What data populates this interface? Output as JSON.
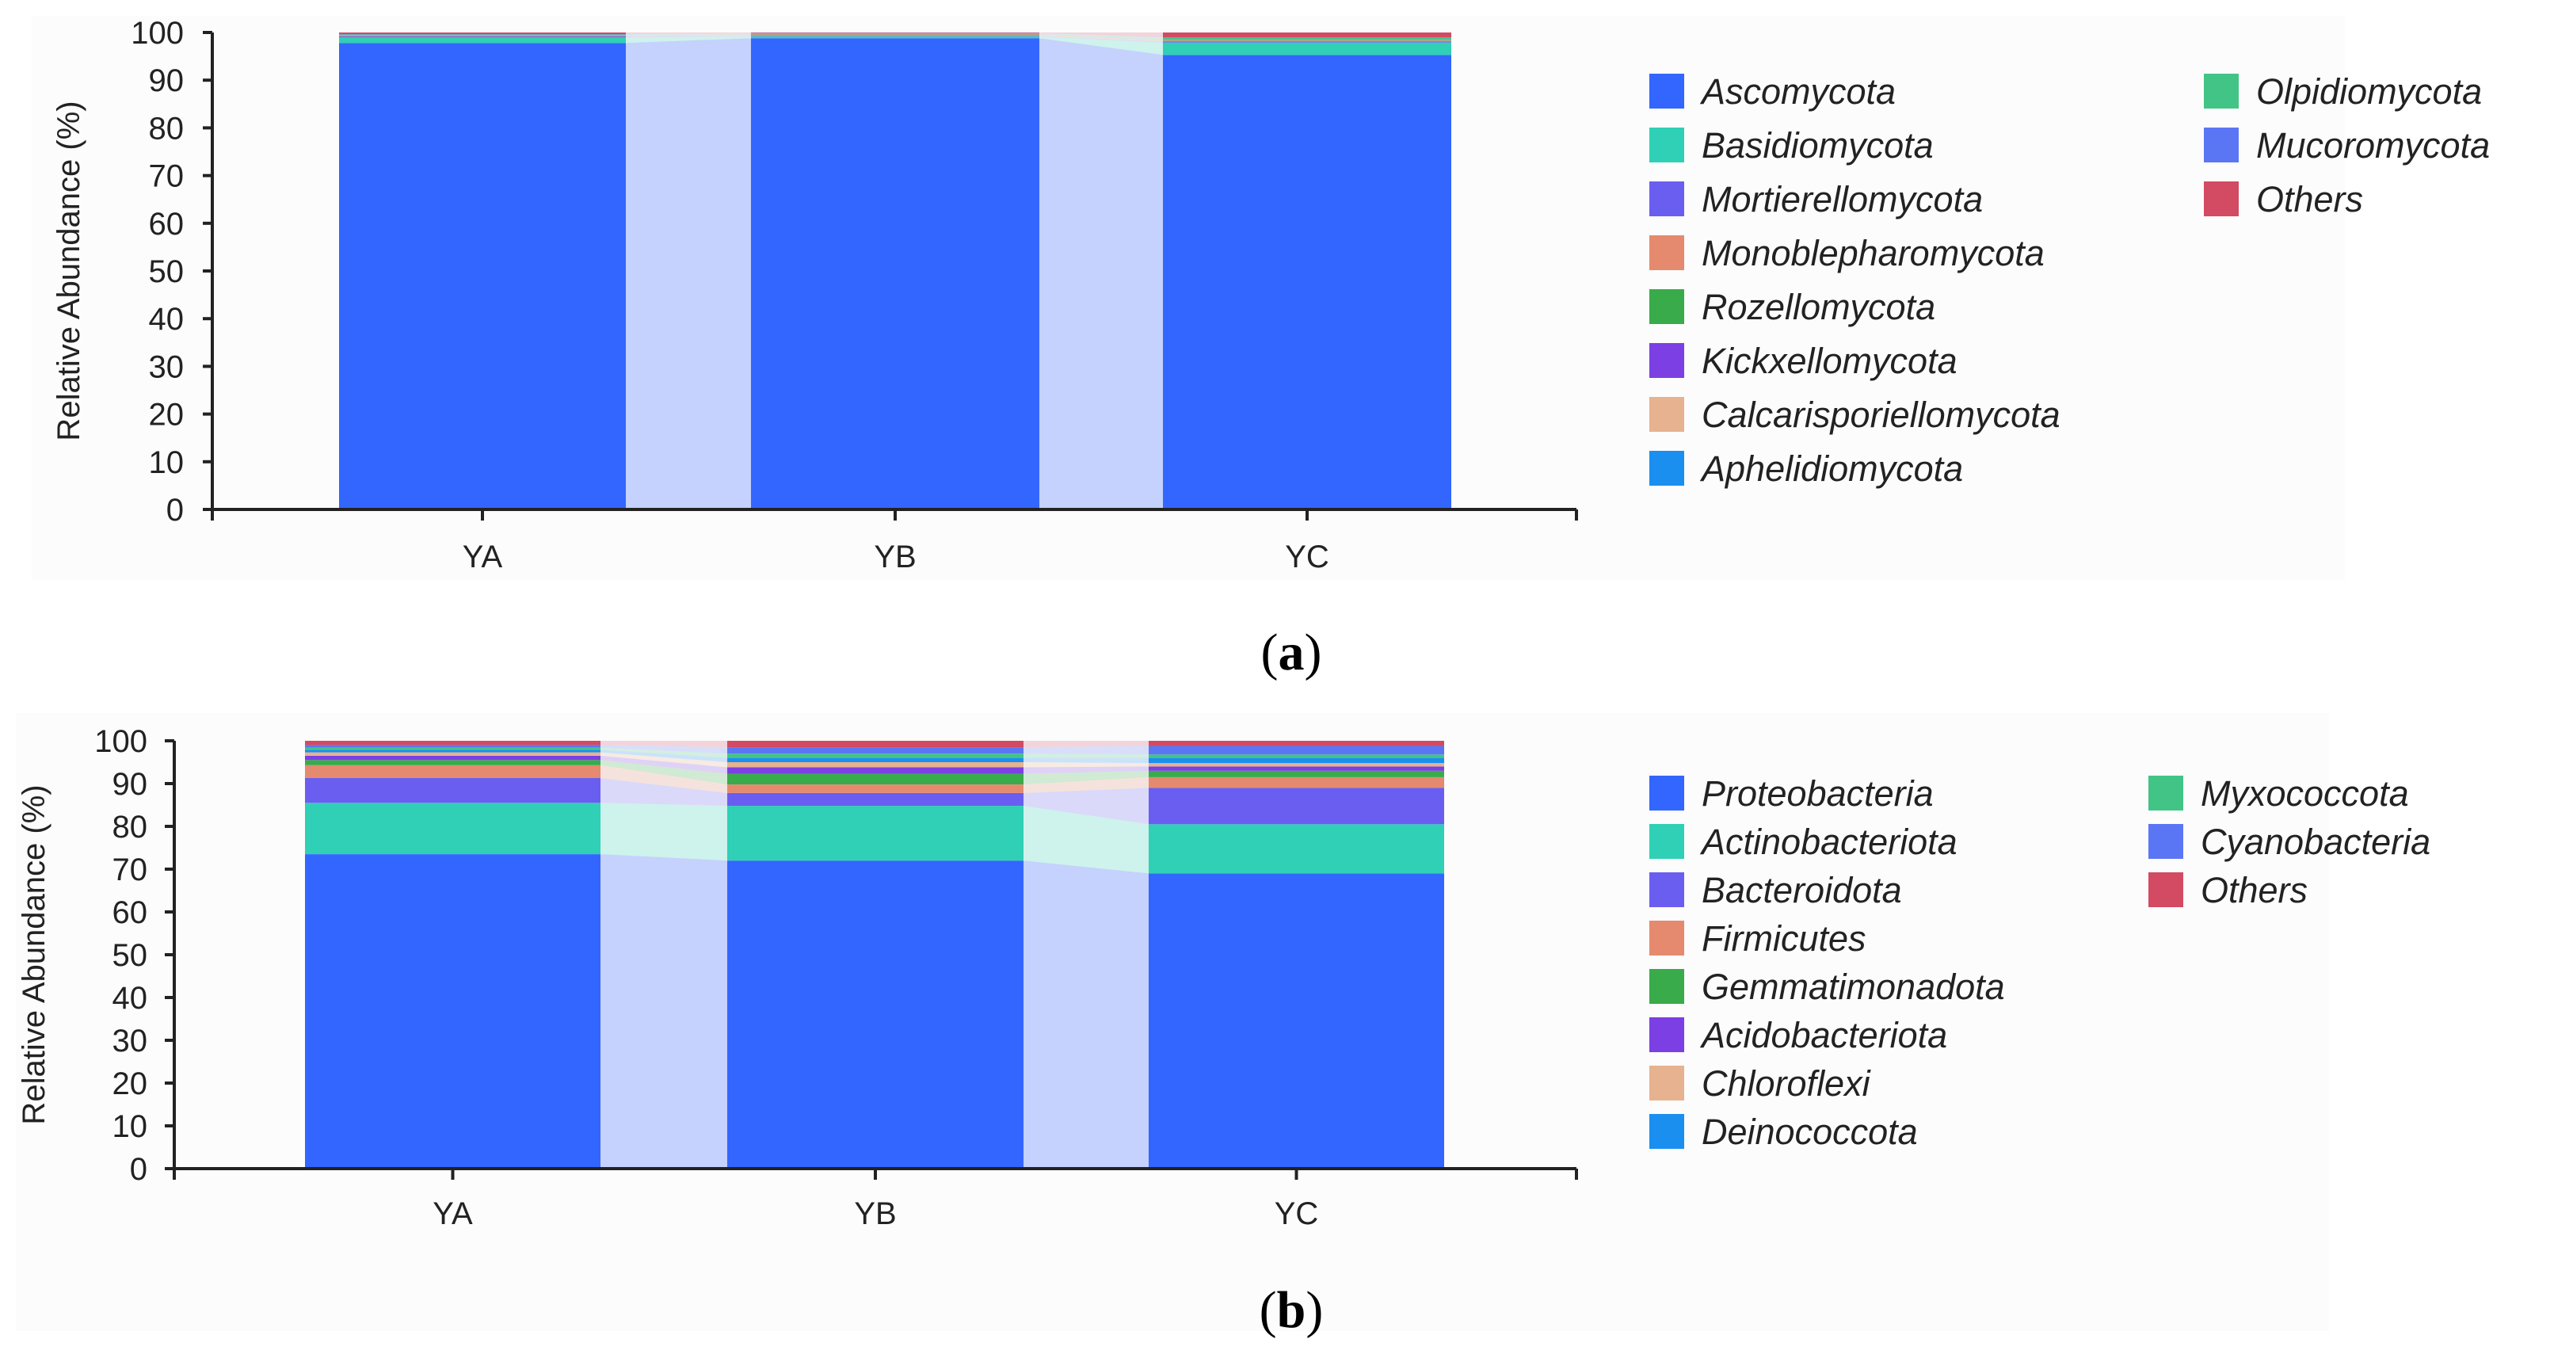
{
  "chart_data": [
    {
      "type": "bar",
      "stacked": true,
      "panel": "a",
      "ylabel": "Relative Abundance (%)",
      "xlabel": "",
      "ylim": [
        0,
        100
      ],
      "yticks": [
        0,
        10,
        20,
        30,
        40,
        50,
        60,
        70,
        80,
        90,
        100
      ],
      "categories": [
        "YA",
        "YB",
        "YC"
      ],
      "series": [
        {
          "name": "Ascomycota",
          "color": "#3366ff",
          "values": [
            97.8,
            98.8,
            95.3
          ]
        },
        {
          "name": "Basidiomycota",
          "color": "#2fd0b5",
          "values": [
            1.2,
            0.4,
            2.6
          ]
        },
        {
          "name": "Mortierellomycota",
          "color": "#6a5ef0",
          "values": [
            0.2,
            0.1,
            0.2
          ]
        },
        {
          "name": "Monoblepharomycota",
          "color": "#e58a6e",
          "values": [
            0.1,
            0.3,
            0.2
          ]
        },
        {
          "name": "Rozellomycota",
          "color": "#3aab4a",
          "values": [
            0.05,
            0.05,
            0.1
          ]
        },
        {
          "name": "Kickxellomycota",
          "color": "#7b3fe4",
          "values": [
            0.05,
            0.05,
            0.05
          ]
        },
        {
          "name": "Calcarisporiellomycota",
          "color": "#e7b28f",
          "values": [
            0.05,
            0.05,
            0.05
          ]
        },
        {
          "name": "Aphelidiomycota",
          "color": "#1a8ff0",
          "values": [
            0.05,
            0.05,
            0.05
          ]
        },
        {
          "name": "Olpidiomycota",
          "color": "#42c486",
          "values": [
            0.1,
            0.05,
            0.4
          ]
        },
        {
          "name": "Mucoromycota",
          "color": "#5b76f5",
          "values": [
            0.05,
            0.05,
            0.05
          ]
        },
        {
          "name": "Others",
          "color": "#d34a63",
          "values": [
            0.35,
            0.1,
            1.0
          ]
        }
      ]
    },
    {
      "type": "bar",
      "stacked": true,
      "panel": "b",
      "ylabel": "Relative Abundance (%)",
      "xlabel": "",
      "ylim": [
        0,
        100
      ],
      "yticks": [
        0,
        10,
        20,
        30,
        40,
        50,
        60,
        70,
        80,
        90,
        100
      ],
      "categories": [
        "YA",
        "YB",
        "YC"
      ],
      "series": [
        {
          "name": "Proteobacteria",
          "color": "#3366ff",
          "values": [
            73.5,
            72.0,
            69.0
          ]
        },
        {
          "name": "Actinobacteriota",
          "color": "#2fd0b5",
          "values": [
            12.0,
            12.8,
            11.5
          ]
        },
        {
          "name": "Bacteroidota",
          "color": "#6a5ef0",
          "values": [
            5.8,
            3.0,
            8.5
          ]
        },
        {
          "name": "Firmicutes",
          "color": "#e58a6e",
          "values": [
            3.0,
            2.0,
            2.5
          ]
        },
        {
          "name": "Gemmatimonadota",
          "color": "#3aab4a",
          "values": [
            1.2,
            2.5,
            1.5
          ]
        },
        {
          "name": "Acidobacteriota",
          "color": "#7b3fe4",
          "values": [
            1.0,
            1.5,
            1.0
          ]
        },
        {
          "name": "Chloroflexi",
          "color": "#e7b28f",
          "values": [
            0.8,
            1.2,
            0.8
          ]
        },
        {
          "name": "Deinococcota",
          "color": "#1a8ff0",
          "values": [
            0.6,
            1.0,
            1.2
          ]
        },
        {
          "name": "Myxococcota",
          "color": "#42c486",
          "values": [
            0.5,
            1.0,
            0.8
          ]
        },
        {
          "name": "Cyanobacteria",
          "color": "#5b76f5",
          "values": [
            0.6,
            1.5,
            2.0
          ]
        },
        {
          "name": "Others",
          "color": "#d34a63",
          "values": [
            1.0,
            1.5,
            1.2
          ]
        }
      ]
    }
  ],
  "captions": {
    "a": {
      "open": "(",
      "letter": "a",
      "close": ")"
    },
    "b": {
      "open": "(",
      "letter": "b",
      "close": ")"
    }
  }
}
